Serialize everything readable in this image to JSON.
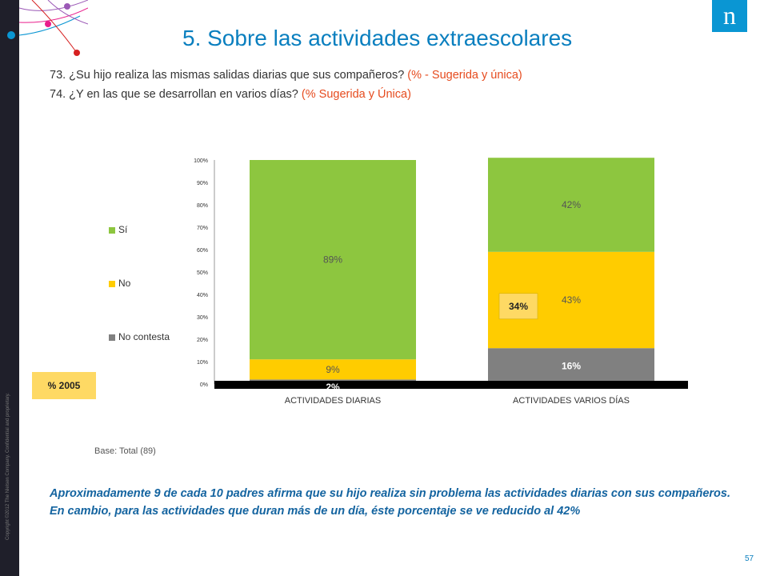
{
  "slide": {
    "title": "5. Sobre las actividades extraescolares",
    "q1_main": "73. ¿Su hijo realiza las mismas salidas diarias que sus compañeros?",
    "q1_tag": "(% - Sugerida y única)",
    "q2_main": "74. ¿Y en las que se desarrollan en varios días?",
    "q2_tag": "(% Sugerida y Única)",
    "copyright": "Copyright ©2012 The Nielsen Company. Confidential and proprietary.",
    "logo_letter": "n",
    "note_2005_label": "% 2005",
    "base": "Base: Total (89)",
    "conclusion": "Aproximadamente 9 de cada 10 padres afirma que su hijo realiza sin problema las actividades diarias con sus compañeros. En cambio, para las actividades que duran más de un día, éste porcentaje se ve reducido al 42%",
    "page_number": "57"
  },
  "chart_data": {
    "type": "bar",
    "stacked": true,
    "categories": [
      "ACTIVIDADES DIARIAS",
      "ACTIVIDADES VARIOS DÍAS"
    ],
    "series": [
      {
        "name": "No contesta",
        "values": [
          2,
          16
        ],
        "labels": [
          "2%",
          "16%"
        ],
        "color": "#808080"
      },
      {
        "name": "No",
        "values": [
          9,
          43
        ],
        "labels": [
          "9%",
          "43%"
        ],
        "color": "#ffcc00"
      },
      {
        "name": "Sí",
        "values": [
          89,
          42
        ],
        "labels": [
          "89%",
          "42%"
        ],
        "color": "#8dc63f"
      }
    ],
    "legend_order": [
      "Sí",
      "No",
      "No contesta"
    ],
    "yticks": [
      "0%",
      "10%",
      "20%",
      "30%",
      "40%",
      "50%",
      "60%",
      "70%",
      "80%",
      "90%",
      "100%"
    ],
    "ylim": [
      0,
      100
    ],
    "comparison_2005": {
      "label": "34%",
      "value": 34,
      "category": "ACTIVIDADES VARIOS DÍAS"
    }
  }
}
